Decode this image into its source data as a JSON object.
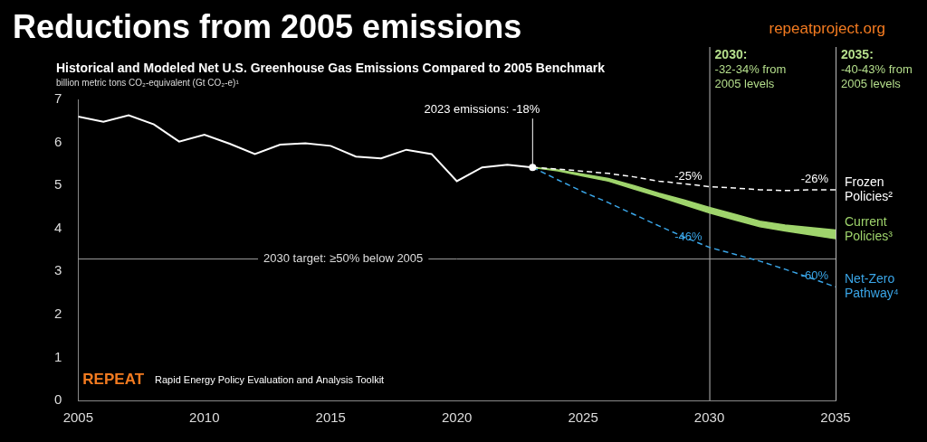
{
  "chart_data": {
    "type": "line",
    "title": "Reductions from 2005 emissions",
    "source": "repeatproject.org",
    "subtitle": "Historical and Modeled Net U.S. Greenhouse Gas Emissions Compared to 2005 Benchmark",
    "y_label": "billion metric tons CO₂-equivalent (Gt CO₂-e)¹",
    "x": [
      2005,
      2006,
      2007,
      2008,
      2009,
      2010,
      2011,
      2012,
      2013,
      2014,
      2015,
      2016,
      2017,
      2018,
      2019,
      2020,
      2021,
      2022,
      2023,
      2024,
      2025,
      2026,
      2027,
      2028,
      2029,
      2030,
      2031,
      2032,
      2033,
      2034,
      2035
    ],
    "xlim": [
      2005,
      2035
    ],
    "xticks": [
      2005,
      2010,
      2015,
      2020,
      2025,
      2030,
      2035
    ],
    "ylim": [
      0,
      7
    ],
    "yticks": [
      0,
      1,
      2,
      3,
      4,
      5,
      6,
      7
    ],
    "grid": false,
    "series": [
      {
        "color": "#ffffff",
        "line_style": "solid",
        "values": [
          6.6,
          6.48,
          6.63,
          6.42,
          6.02,
          6.18,
          5.97,
          5.73,
          5.95,
          5.98,
          5.92,
          5.67,
          5.63,
          5.83,
          5.73,
          5.1,
          5.42,
          5.48,
          5.42,
          null,
          null,
          null,
          null,
          null,
          null,
          null,
          null,
          null,
          null,
          null,
          null
        ]
      },
      {
        "name": "Frozen Policies²",
        "color": "#ffffff",
        "line_style": "dashed",
        "values": [
          null,
          null,
          null,
          null,
          null,
          null,
          null,
          null,
          null,
          null,
          null,
          null,
          null,
          null,
          null,
          null,
          null,
          null,
          5.42,
          5.38,
          5.33,
          5.28,
          5.2,
          5.1,
          5.04,
          4.97,
          4.94,
          4.9,
          4.88,
          4.9,
          4.9
        ],
        "labels": [
          {
            "x": 2030,
            "text": "-25%"
          },
          {
            "x": 2035,
            "text": "-26%"
          }
        ]
      },
      {
        "name": "Current Policies³",
        "color": "#9fd46c",
        "line_style": "solid",
        "values": [
          null,
          null,
          null,
          null,
          null,
          null,
          null,
          null,
          null,
          null,
          null,
          null,
          null,
          null,
          null,
          null,
          null,
          null,
          5.42,
          5.36,
          5.26,
          5.16,
          5.0,
          4.82,
          4.66,
          4.49,
          4.33,
          4.17,
          4.08,
          4.02,
          3.96
        ],
        "values_low": [
          null,
          null,
          null,
          null,
          null,
          null,
          null,
          null,
          null,
          null,
          null,
          null,
          null,
          null,
          null,
          null,
          null,
          null,
          5.42,
          5.34,
          5.22,
          5.1,
          4.92,
          4.74,
          4.55,
          4.36,
          4.2,
          4.04,
          3.94,
          3.85,
          3.76
        ]
      },
      {
        "name": "Net-Zero Pathway⁴",
        "color": "#3aa6e8",
        "line_style": "dashed",
        "values": [
          null,
          null,
          null,
          null,
          null,
          null,
          null,
          null,
          null,
          null,
          null,
          null,
          null,
          null,
          null,
          null,
          null,
          null,
          5.42,
          5.13,
          4.85,
          4.6,
          4.33,
          4.06,
          3.8,
          3.56,
          3.4,
          3.24,
          3.05,
          2.85,
          2.64
        ],
        "labels": [
          {
            "x": 2030,
            "text": "-46%"
          },
          {
            "x": 2035,
            "text": "-60%"
          }
        ]
      }
    ],
    "annotations": [
      {
        "text": "2023 emissions: -18%",
        "x": 2023,
        "y": 5.42,
        "marker": "circle"
      }
    ],
    "hlines": [
      {
        "y": 3.3,
        "text": "2030 target: ≥50% below 2005"
      }
    ],
    "vlines": [
      {
        "x": 2030,
        "title": "2030:",
        "text": "-32-34% from 2005 levels",
        "color": "#b5df8c"
      },
      {
        "x": 2035,
        "title": "2035:",
        "text": "-40-43% from 2005 levels",
        "color": "#b5df8c"
      }
    ],
    "footer": {
      "logo": "REPEAT",
      "text": "Rapid Energy Policy Evaluation and Analysis Toolkit"
    }
  }
}
